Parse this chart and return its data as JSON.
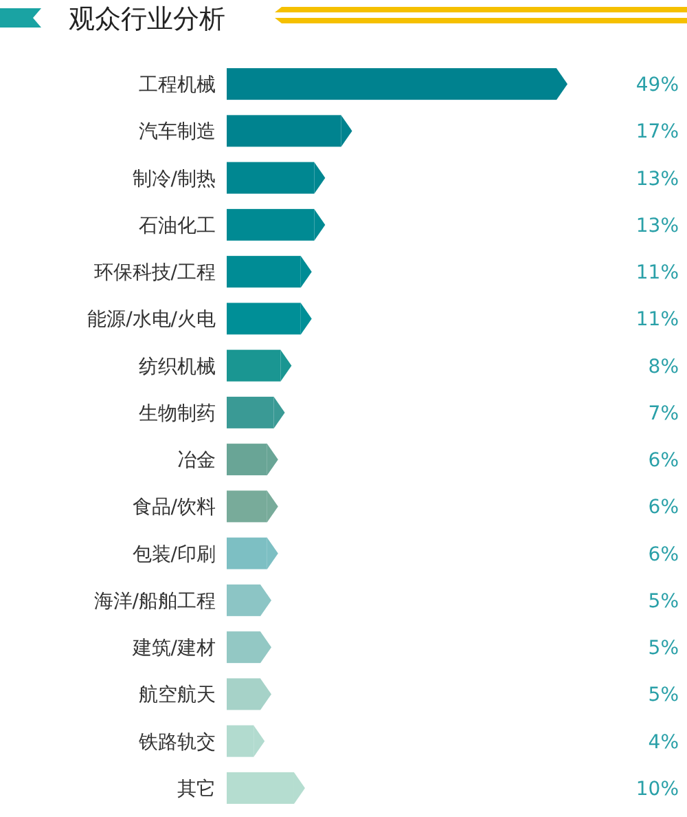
{
  "chart_data": {
    "type": "bar",
    "orientation": "horizontal",
    "title": "观众行业分析",
    "categories": [
      "工程机械",
      "汽车制造",
      "制冷/制热",
      "石油化工",
      "环保科技/工程",
      "能源/水电/火电",
      "纺织机械",
      "生物制药",
      "冶金",
      "食品/饮料",
      "包装/印刷",
      "海洋/船舶工程",
      "建筑/建材",
      "航空航天",
      "铁路轨交",
      "其它"
    ],
    "values": [
      49,
      17,
      13,
      13,
      11,
      11,
      8,
      7,
      6,
      6,
      6,
      5,
      5,
      5,
      4,
      10
    ],
    "value_labels": [
      "49%",
      "17%",
      "13%",
      "13%",
      "11%",
      "11%",
      "8%",
      "7%",
      "6%",
      "6%",
      "6%",
      "5%",
      "5%",
      "5%",
      "4%",
      "10%"
    ],
    "colors": [
      "#00828f",
      "#00838f",
      "#008791",
      "#008a93",
      "#008c95",
      "#008f97",
      "#1a9692",
      "#3a9a95",
      "#69a596",
      "#78ab9a",
      "#7dbfc3",
      "#8cc5c5",
      "#93c8c4",
      "#a6d2c8",
      "#b2dbcf",
      "#b5ddd0"
    ]
  }
}
